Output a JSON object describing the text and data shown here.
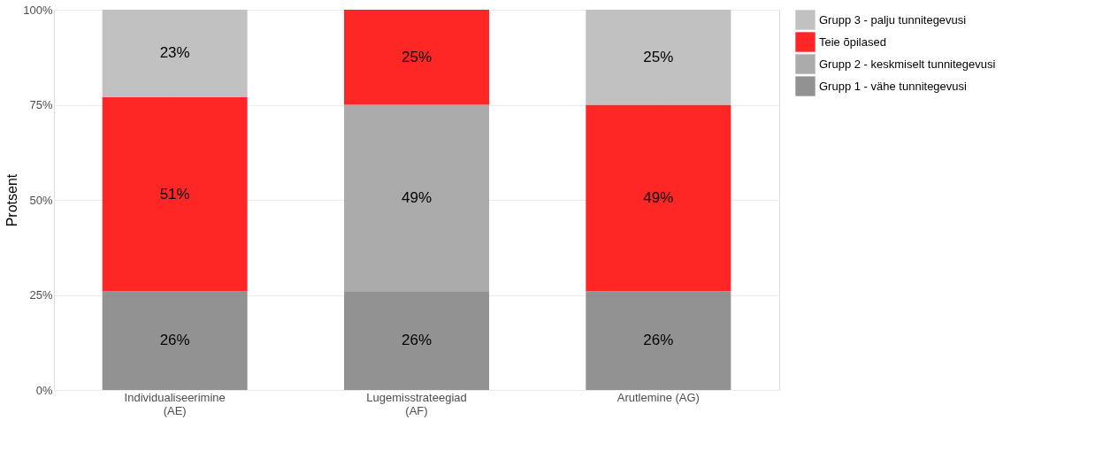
{
  "chart_data": {
    "type": "bar",
    "stacked": true,
    "ylabel": "Protsent",
    "categories": [
      "Individualiseerimine\n(AE)",
      "Lugemisstrateegiad\n(AF)",
      "Arutlemine (AG)"
    ],
    "series": [
      {
        "name": "Grupp 1 - vähe tunnitegevusi",
        "color": "#8c8c8c",
        "values": [
          26,
          26,
          26
        ],
        "value_labels": [
          "26%",
          "26%",
          "26%"
        ]
      },
      {
        "name": "Grupp 2 - keskmiselt tunnitegevusi",
        "color": "#a6a6a6",
        "values": [
          null,
          49,
          null
        ],
        "value_labels": [
          null,
          "49%",
          null
        ]
      },
      {
        "name": "Teie õpilased",
        "color": "#ff1a1a",
        "values": [
          51,
          25,
          49
        ],
        "value_labels": [
          "51%",
          "25%",
          "49%"
        ]
      },
      {
        "name": "Grupp 3 - palju tunnitegevusi",
        "color": "#bebebe",
        "values": [
          23,
          null,
          25
        ],
        "value_labels": [
          "23%",
          null,
          "25%"
        ]
      }
    ],
    "ylim": [
      0,
      100
    ],
    "yticks": [
      {
        "value": 0,
        "label": "0%"
      },
      {
        "value": 25,
        "label": "25%"
      },
      {
        "value": 50,
        "label": "50%"
      },
      {
        "value": 75,
        "label": "75%"
      },
      {
        "value": 100,
        "label": "100%"
      }
    ],
    "grid": true,
    "legend": "right"
  }
}
